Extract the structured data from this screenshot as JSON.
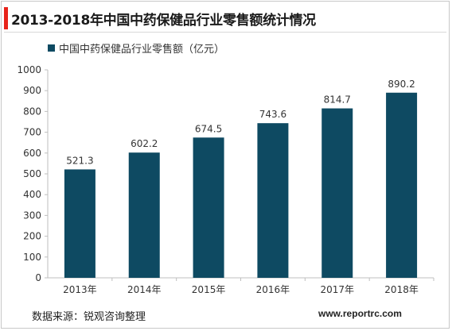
{
  "title": "2013-2018年中国中药保健品行业零售额统计情况",
  "source": "数据来源：锐观咨询整理",
  "website": "www.reportrc.com",
  "colors": {
    "accent": "#e8231a",
    "bar": "#0e4a62"
  },
  "chart_data": {
    "type": "bar",
    "categories": [
      "2013年",
      "2014年",
      "2015年",
      "2016年",
      "2017年",
      "2018年"
    ],
    "series": [
      {
        "name": "中国中药保健品行业零售额（亿元）",
        "values": [
          521.3,
          602.2,
          674.5,
          743.6,
          814.7,
          890.2
        ]
      }
    ],
    "data_labels": [
      "521.3",
      "602.2",
      "674.5",
      "743.6",
      "814.7",
      "890.2"
    ],
    "ylim": [
      0,
      1000
    ],
    "yticks": [
      0,
      100,
      200,
      300,
      400,
      500,
      600,
      700,
      800,
      900,
      1000
    ],
    "grid": false,
    "legend": "top-left"
  }
}
